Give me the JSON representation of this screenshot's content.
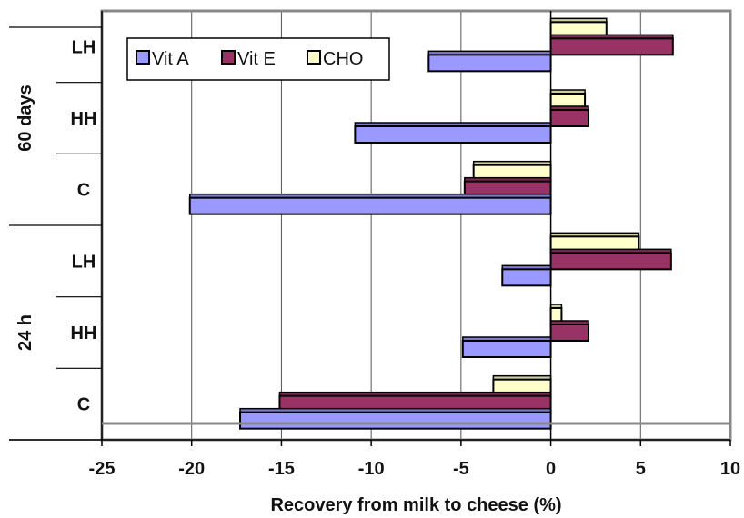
{
  "chart_data": {
    "type": "bar",
    "orientation": "horizontal",
    "xlabel": "Recovery from milk to cheese (%)",
    "xlim": [
      -25,
      10
    ],
    "xticks": [
      -25,
      -20,
      -15,
      -10,
      -5,
      0,
      5,
      10
    ],
    "grid": "vertical gridlines",
    "legend_position": "top-left",
    "groups": [
      {
        "label": "60 days",
        "categories": [
          "LH",
          "HH",
          "C"
        ]
      },
      {
        "label": "24 h",
        "categories": [
          "LH",
          "HH",
          "C"
        ]
      }
    ],
    "series": [
      {
        "name": "Vit A",
        "color": "#9999FF",
        "values": [
          -6.8,
          -10.9,
          -20.1,
          -2.7,
          -4.9,
          -17.3
        ]
      },
      {
        "name": "Vit E",
        "color": "#993366",
        "values": [
          6.8,
          2.1,
          -4.8,
          6.7,
          2.1,
          -15.1
        ]
      },
      {
        "name": "CHO",
        "color": "#FFFFCC",
        "values": [
          3.1,
          1.9,
          -4.3,
          4.9,
          0.6,
          -3.2
        ]
      }
    ]
  }
}
